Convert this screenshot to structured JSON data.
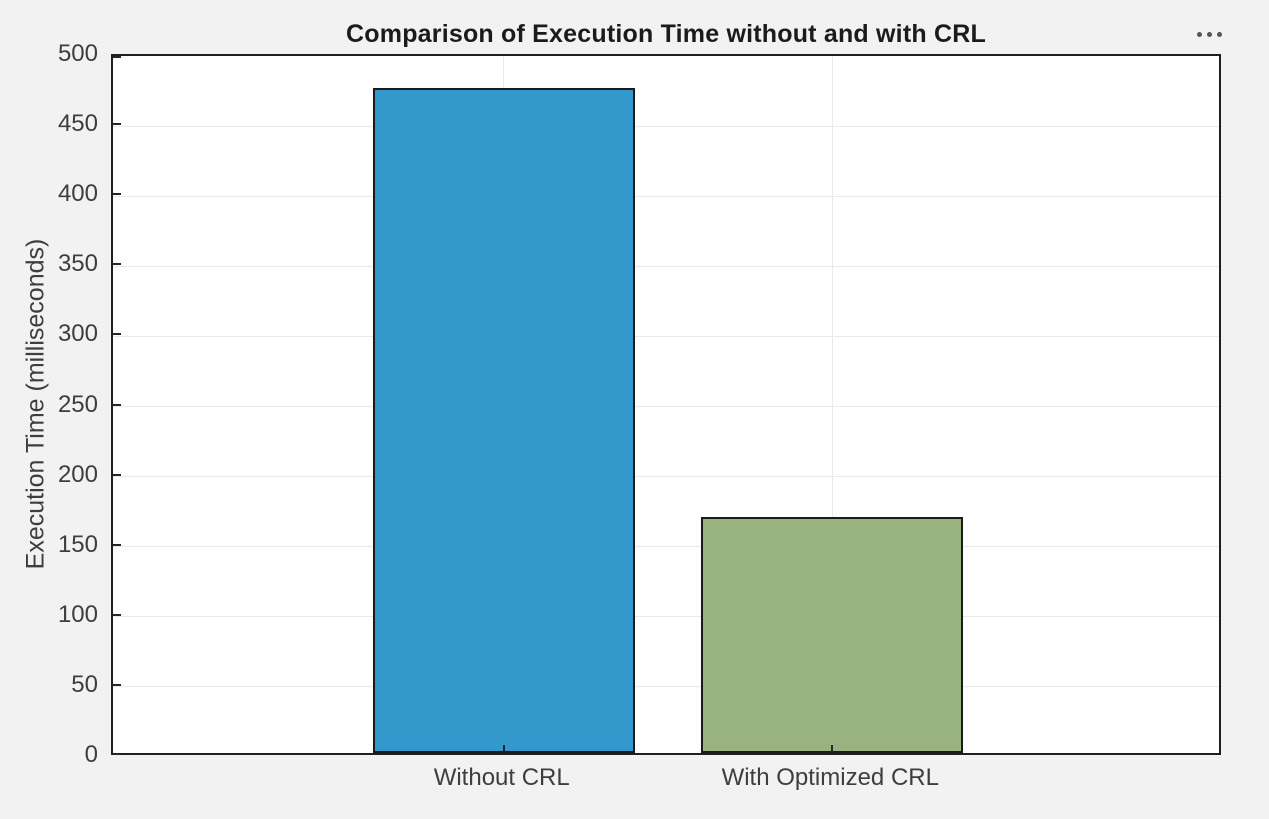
{
  "figure": {
    "toolbar": {
      "more_options_icon": "ellipsis-menu"
    }
  },
  "chart_data": {
    "type": "bar",
    "title": "Comparison of Execution Time without and with CRL",
    "categories": [
      "Without CRL",
      "With Optimized CRL"
    ],
    "values": [
      474,
      168
    ],
    "bar_colors": [
      "#3399CC",
      "#99B380"
    ],
    "bar_edge_color": "#1A1A1A",
    "xlabel": "",
    "ylabel": "Execution Time (milliseconds)",
    "ylim": [
      0,
      500
    ],
    "yticks": [
      0,
      50,
      100,
      150,
      200,
      250,
      300,
      350,
      400,
      450,
      500
    ],
    "grid": true,
    "legend": null,
    "plot_background": "#FFFFFF",
    "figure_background": "#F2F2F2",
    "axis_color": "#262626"
  }
}
